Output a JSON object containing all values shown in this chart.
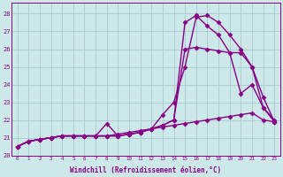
{
  "xlabel": "Windchill (Refroidissement éolien,°C)",
  "xlim": [
    -0.5,
    23.5
  ],
  "ylim": [
    20,
    28.6
  ],
  "yticks": [
    20,
    21,
    22,
    23,
    24,
    25,
    26,
    27,
    28
  ],
  "xticks": [
    0,
    1,
    2,
    3,
    4,
    5,
    6,
    7,
    8,
    9,
    10,
    11,
    12,
    13,
    14,
    15,
    16,
    17,
    18,
    19,
    20,
    21,
    22,
    23
  ],
  "background_color": "#cce8e8",
  "grid_color": "#aacaca",
  "line_color": "#880088",
  "line_width": 1.0,
  "marker": "D",
  "marker_size": 2.5,
  "series": [
    [
      20.5,
      20.8,
      20.9,
      21.0,
      21.1,
      21.1,
      21.1,
      21.1,
      21.1,
      21.1,
      21.2,
      21.3,
      21.5,
      21.7,
      22.0,
      27.5,
      27.9,
      27.3,
      26.8,
      25.8,
      25.8,
      25.0,
      22.7,
      21.9
    ],
    [
      20.5,
      20.8,
      20.9,
      21.0,
      21.1,
      21.1,
      21.1,
      21.1,
      21.1,
      21.1,
      21.2,
      21.3,
      21.5,
      21.7,
      22.0,
      26.0,
      26.1,
      26.0,
      25.9,
      25.8,
      23.5,
      24.0,
      22.7,
      22.0
    ],
    [
      20.5,
      20.8,
      20.9,
      21.0,
      21.1,
      21.1,
      21.1,
      21.1,
      21.8,
      21.1,
      21.2,
      21.3,
      21.5,
      22.3,
      23.0,
      25.0,
      27.8,
      27.9,
      27.5,
      26.8,
      26.0,
      25.0,
      23.3,
      21.9
    ],
    [
      20.5,
      20.8,
      20.9,
      21.0,
      21.1,
      21.1,
      21.1,
      21.1,
      21.1,
      21.2,
      21.3,
      21.4,
      21.5,
      21.6,
      21.7,
      21.8,
      21.9,
      22.0,
      22.1,
      22.2,
      22.3,
      22.4,
      22.0,
      21.9
    ]
  ]
}
